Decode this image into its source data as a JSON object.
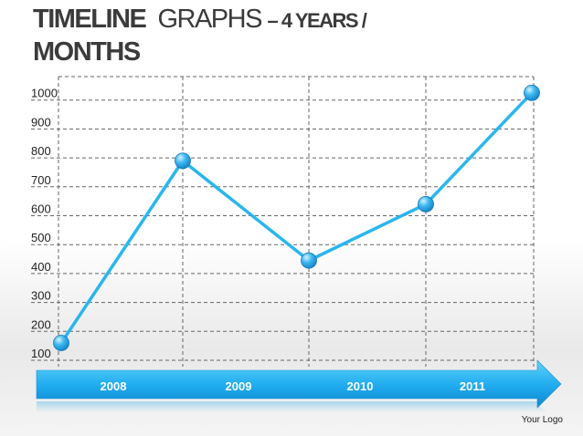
{
  "title": {
    "part1": "TIMELINE",
    "part2": "GRAPHS",
    "part3": "– 4 YEARS /",
    "part4": "MONTHS"
  },
  "logo_text": "Your Logo",
  "colors": {
    "line": "#29b6ee",
    "marker": "#2fa9e6",
    "arrow_light": "#3cc6f5",
    "arrow_dark": "#0f8fd6",
    "grid": "#666666"
  },
  "chart_data": {
    "type": "line",
    "title": "",
    "xlabel": "",
    "ylabel": "",
    "categories": [
      "2008",
      "2009",
      "2010",
      "2011"
    ],
    "y_ticks": [
      100,
      200,
      300,
      400,
      500,
      600,
      700,
      800,
      900,
      1000
    ],
    "ylim": [
      100,
      1000
    ],
    "grid": true,
    "series": [
      {
        "points": [
          {
            "x": "2008 start",
            "y": 160
          },
          {
            "x": "2008/2009",
            "y": 790
          },
          {
            "x": "2009/2010",
            "y": 445
          },
          {
            "x": "2010/2011",
            "y": 640
          },
          {
            "x": "2011 end",
            "y": 1025
          }
        ]
      }
    ]
  }
}
